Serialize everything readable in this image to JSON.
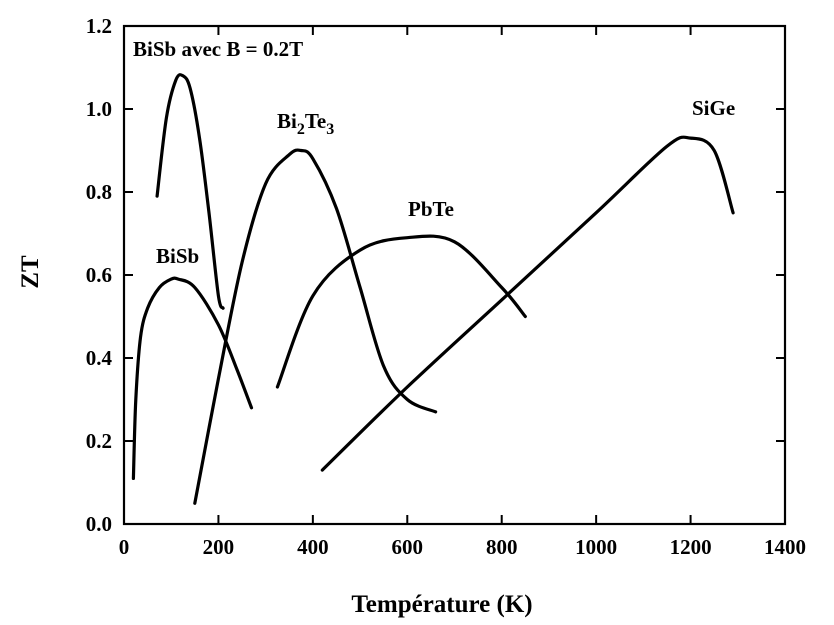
{
  "chart_data": {
    "type": "line",
    "xlabel": "Température (K)",
    "ylabel": "ZT",
    "xlim": [
      0,
      1400
    ],
    "ylim": [
      0,
      1.2
    ],
    "x_ticks": [
      0,
      200,
      400,
      600,
      800,
      1000,
      1200,
      1400
    ],
    "y_ticks": [
      0.0,
      0.2,
      0.4,
      0.6,
      0.8,
      1.0,
      1.2
    ],
    "x_tick_labels": [
      "0",
      "200",
      "400",
      "600",
      "800",
      "1000",
      "1200",
      "1400"
    ],
    "y_tick_labels": [
      "0.0",
      "0.2",
      "0.4",
      "0.6",
      "0.8",
      "1.0",
      "1.2"
    ],
    "grid": false,
    "legend": "none",
    "series": [
      {
        "name": "BiSb avec B = 0.2T",
        "x": [
          70,
          90,
          110,
          125,
          140,
          160,
          180,
          200,
          210
        ],
        "y": [
          0.79,
          0.98,
          1.07,
          1.08,
          1.05,
          0.93,
          0.75,
          0.55,
          0.52
        ]
      },
      {
        "name": "BiSb",
        "x": [
          20,
          25,
          35,
          50,
          75,
          100,
          115,
          150,
          200,
          240,
          270
        ],
        "y": [
          0.11,
          0.3,
          0.45,
          0.52,
          0.57,
          0.59,
          0.59,
          0.57,
          0.48,
          0.37,
          0.28
        ]
      },
      {
        "name": "Bi",
        "label_parts": [
          {
            "text": "Bi",
            "sub": false
          },
          {
            "text": "2",
            "sub": true
          },
          {
            "text": "Te",
            "sub": false
          },
          {
            "text": "3",
            "sub": true
          }
        ],
        "x": [
          150,
          200,
          250,
          300,
          350,
          375,
          400,
          450,
          500,
          550,
          600,
          660
        ],
        "y": [
          0.05,
          0.35,
          0.63,
          0.82,
          0.89,
          0.9,
          0.88,
          0.76,
          0.57,
          0.38,
          0.3,
          0.27
        ]
      },
      {
        "name": "PbTe",
        "x": [
          325,
          400,
          500,
          600,
          700,
          800,
          850
        ],
        "y": [
          0.33,
          0.55,
          0.66,
          0.69,
          0.68,
          0.57,
          0.5
        ]
      },
      {
        "name": "SiGe",
        "x": [
          420,
          600,
          800,
          1000,
          1150,
          1200,
          1250,
          1290
        ],
        "y": [
          0.13,
          0.33,
          0.54,
          0.75,
          0.91,
          0.93,
          0.9,
          0.75
        ]
      }
    ]
  }
}
